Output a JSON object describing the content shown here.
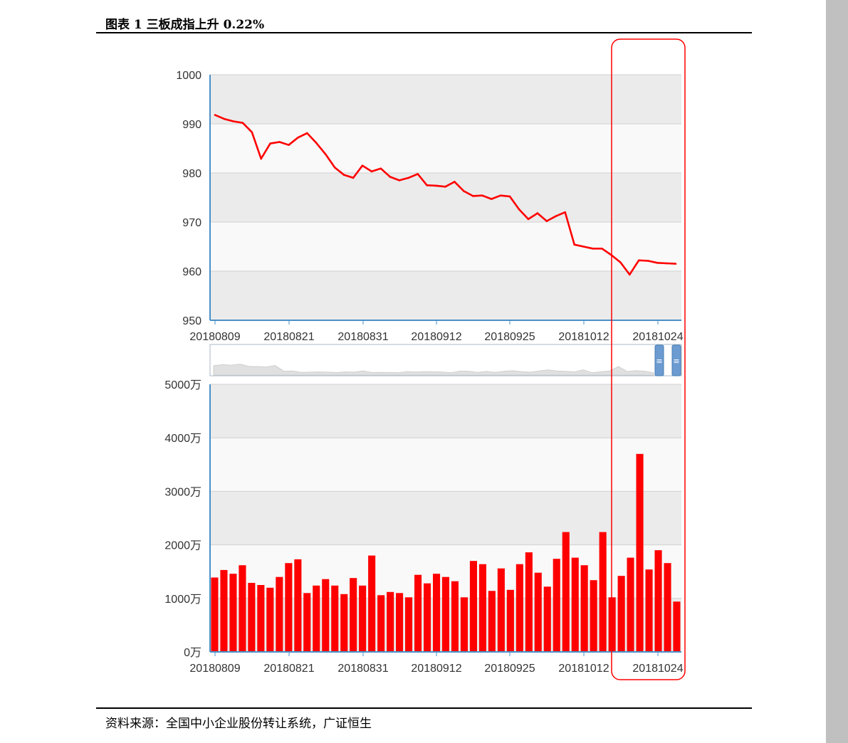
{
  "header": {
    "title": "图表 1  三板成指上升 0.22%"
  },
  "footer": {
    "source": "资料来源：全国中小企业股份转让系统，广证恒生"
  },
  "colors": {
    "line": "#ff0000",
    "bar": "#ff0000",
    "highlight": "#ff0000",
    "axis": "#4a90c8",
    "band_dark": "#ebebeb",
    "band_light": "#f9f9f9"
  },
  "chart_data": [
    {
      "type": "line",
      "title": "",
      "xlabel": "",
      "ylabel": "",
      "ylim": [
        950,
        1000
      ],
      "yticks": [
        950,
        960,
        970,
        980,
        990,
        1000
      ],
      "ytick_labels": [
        "950",
        "960",
        "970",
        "980",
        "990",
        "1000"
      ],
      "xtick_labels": [
        "20180809",
        "20180821",
        "20180831",
        "20180912",
        "20180925",
        "20181012",
        "20181024"
      ],
      "grid": true,
      "series": [
        {
          "values": [
            991.8,
            991.0,
            990.5,
            990.2,
            988.3,
            982.9,
            986.0,
            986.3,
            985.7,
            987.2,
            988.1,
            986.1,
            983.8,
            981.1,
            979.6,
            979.0,
            981.5,
            980.3,
            980.9,
            979.2,
            978.5,
            979.0,
            979.8,
            977.5,
            977.4,
            977.2,
            978.2,
            976.3,
            975.3,
            975.4,
            974.7,
            975.4,
            975.2,
            972.6,
            970.6,
            971.8,
            970.2,
            971.2,
            972.0,
            965.4,
            965.0,
            964.6,
            964.6,
            963.3,
            961.8,
            959.3,
            962.2,
            962.1,
            961.7,
            961.6,
            961.5
          ]
        }
      ]
    },
    {
      "type": "bar",
      "title": "",
      "xlabel": "",
      "ylabel": "",
      "ylim": [
        0,
        5000
      ],
      "yticks": [
        0,
        1000,
        2000,
        3000,
        4000,
        5000
      ],
      "ytick_labels": [
        "0万",
        "1000万",
        "2000万",
        "3000万",
        "4000万",
        "5000万"
      ],
      "xtick_labels": [
        "20180809",
        "20180821",
        "20180831",
        "20180912",
        "20180925",
        "20181012",
        "20181024"
      ],
      "grid": true,
      "series": [
        {
          "values": [
            1390,
            1530,
            1460,
            1620,
            1290,
            1250,
            1200,
            1400,
            1660,
            1730,
            1100,
            1240,
            1360,
            1240,
            1080,
            1380,
            1240,
            1800,
            1060,
            1120,
            1100,
            1020,
            1440,
            1280,
            1460,
            1400,
            1320,
            1020,
            1700,
            1640,
            1140,
            1560,
            1160,
            1640,
            1860,
            1480,
            1220,
            1740,
            2240,
            1760,
            1620,
            1340,
            2240,
            1020,
            1420,
            1760,
            3700,
            1540,
            1900,
            1660,
            940
          ]
        }
      ]
    }
  ]
}
